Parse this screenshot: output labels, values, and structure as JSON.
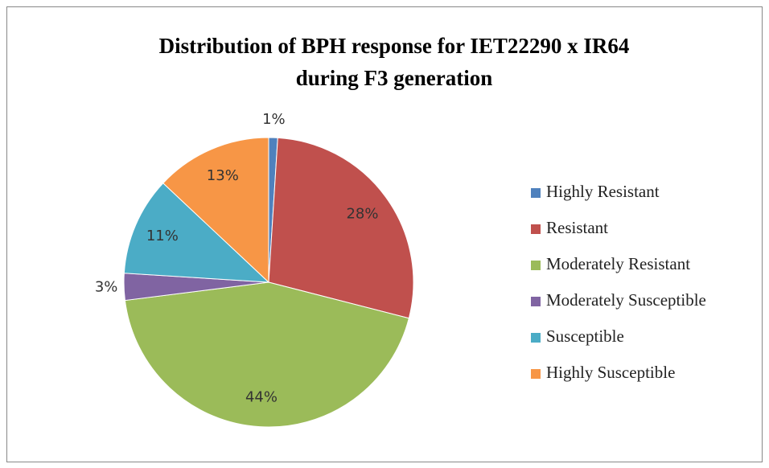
{
  "chart_data": {
    "type": "pie",
    "title": "Distribution of BPH response for IET22290 x IR64",
    "subtitle": "during F3 generation",
    "categories": [
      "Highly Resistant",
      "Resistant",
      "Moderately Resistant",
      "Moderately Susceptible",
      "Susceptible",
      "Highly Susceptible"
    ],
    "values": [
      1,
      28,
      44,
      3,
      11,
      13
    ],
    "value_labels": [
      "1%",
      "28%",
      "44%",
      "3%",
      "11%",
      "13%"
    ],
    "colors": [
      "#4F81BD",
      "#C0504D",
      "#9BBB59",
      "#8064A2",
      "#4BACC6",
      "#F79646"
    ],
    "legend": "right"
  }
}
